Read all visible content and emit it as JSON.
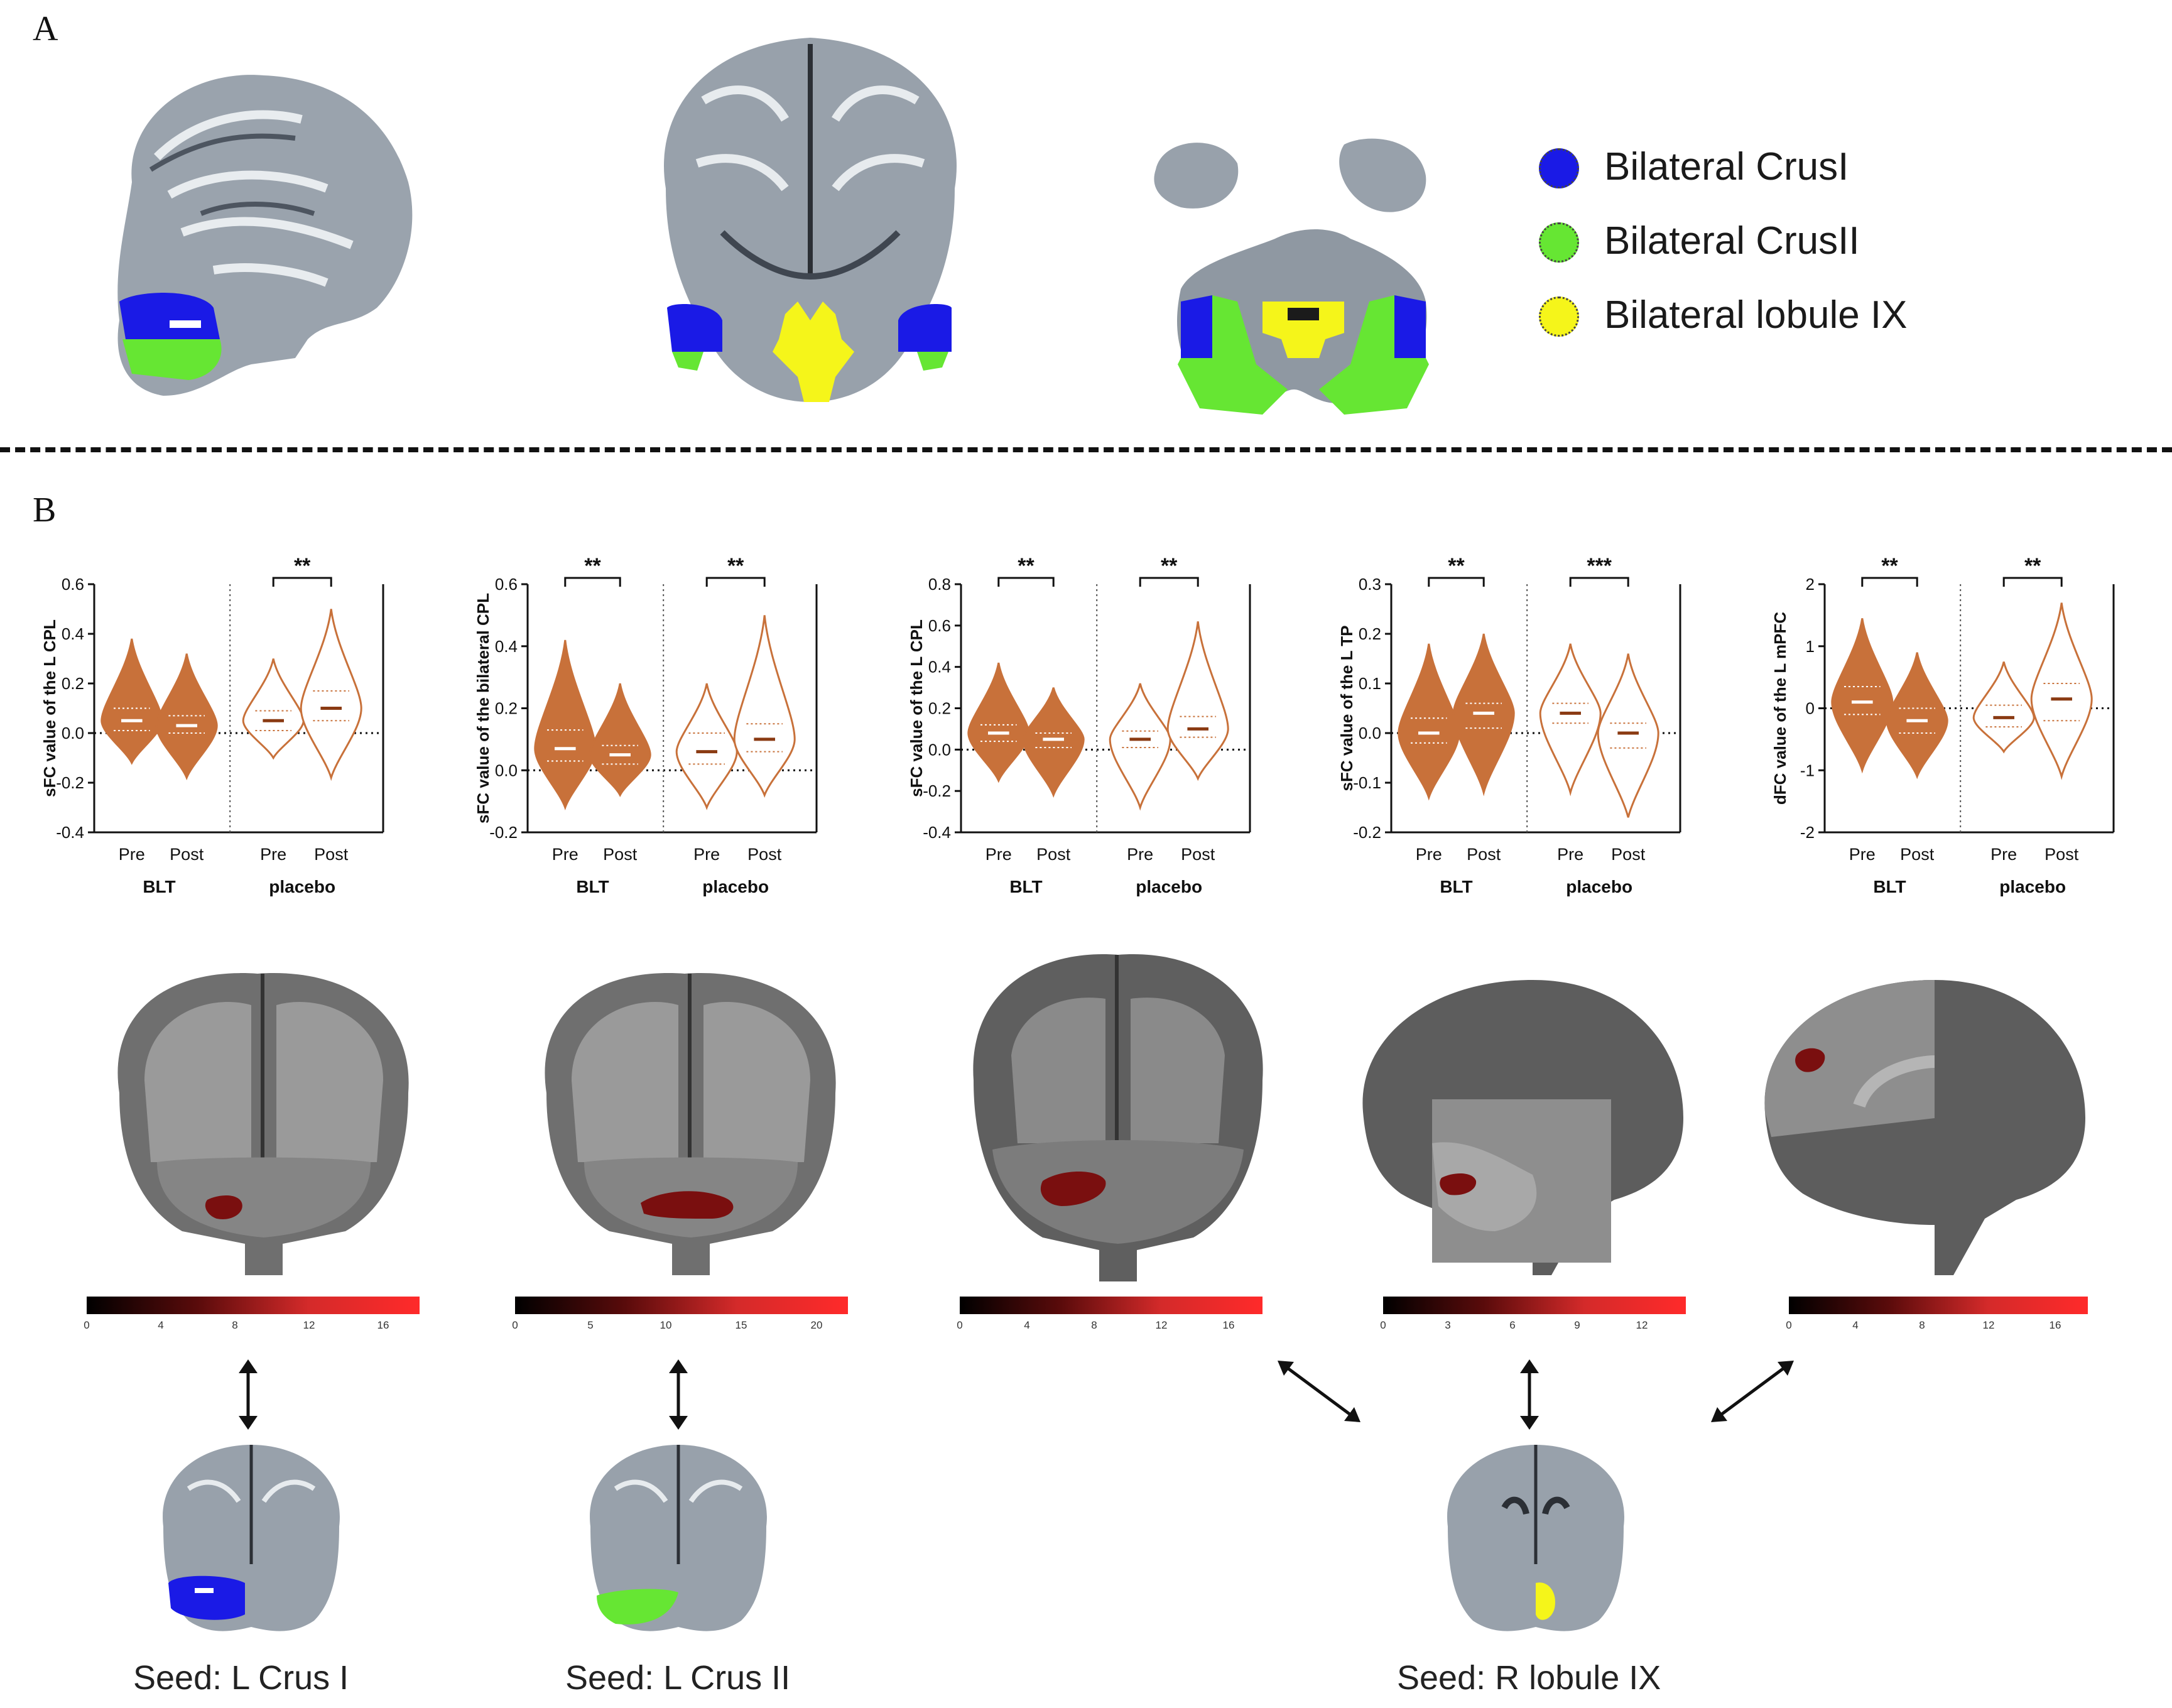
{
  "panel_a": {
    "letter": "A"
  },
  "panel_b": {
    "letter": "B"
  },
  "legend": [
    {
      "label": "Bilateral CrusI",
      "color": "#1a1ae6"
    },
    {
      "label": "Bilateral CrusII",
      "color": "#66e633"
    },
    {
      "label": "Bilateral lobule IX",
      "color": "#f5f51a"
    }
  ],
  "colors": {
    "violin_stroke": "#c8713a",
    "violin_fill": "#c8713a",
    "median": "#8a3a12",
    "cluster": "#7a0f0f"
  },
  "chart_data": [
    {
      "type": "violin",
      "ylabel": "sFC value of the L CPL",
      "ylim": [
        -0.4,
        0.6
      ],
      "yticks": [
        "-0.4",
        "-0.2",
        "0.0",
        "0.2",
        "0.4",
        "0.6"
      ],
      "groups": [
        "BLT",
        "placebo"
      ],
      "conditions": [
        "Pre",
        "Post",
        "Pre",
        "Post"
      ],
      "medians": [
        0.05,
        0.03,
        0.05,
        0.1
      ],
      "q1": [
        0.01,
        0.0,
        0.01,
        0.05
      ],
      "q3": [
        0.1,
        0.07,
        0.09,
        0.17
      ],
      "mins": [
        -0.12,
        -0.18,
        -0.1,
        -0.18
      ],
      "maxs": [
        0.38,
        0.32,
        0.3,
        0.5
      ],
      "sig": [
        "",
        "**"
      ]
    },
    {
      "type": "violin",
      "ylabel": "sFC value of the bilateral CPL",
      "ylim": [
        -0.2,
        0.6
      ],
      "yticks": [
        "-0.2",
        "0.0",
        "0.2",
        "0.4",
        "0.6"
      ],
      "groups": [
        "BLT",
        "placebo"
      ],
      "conditions": [
        "Pre",
        "Post",
        "Pre",
        "Post"
      ],
      "medians": [
        0.07,
        0.05,
        0.06,
        0.1
      ],
      "q1": [
        0.03,
        0.02,
        0.02,
        0.06
      ],
      "q3": [
        0.13,
        0.08,
        0.12,
        0.15
      ],
      "mins": [
        -0.12,
        -0.08,
        -0.12,
        -0.08
      ],
      "maxs": [
        0.42,
        0.28,
        0.28,
        0.5
      ],
      "sig": [
        "**",
        "**"
      ]
    },
    {
      "type": "violin",
      "ylabel": "sFC value of the L CPL",
      "ylim": [
        -0.4,
        0.8
      ],
      "yticks": [
        "-0.4",
        "-0.2",
        "0.0",
        "0.2",
        "0.4",
        "0.6",
        "0.8"
      ],
      "groups": [
        "BLT",
        "placebo"
      ],
      "conditions": [
        "Pre",
        "Post",
        "Pre",
        "Post"
      ],
      "medians": [
        0.08,
        0.05,
        0.05,
        0.1
      ],
      "q1": [
        0.04,
        0.01,
        0.01,
        0.06
      ],
      "q3": [
        0.12,
        0.08,
        0.09,
        0.16
      ],
      "mins": [
        -0.15,
        -0.22,
        -0.28,
        -0.14
      ],
      "maxs": [
        0.42,
        0.3,
        0.32,
        0.62
      ],
      "sig": [
        "**",
        "**"
      ]
    },
    {
      "type": "violin",
      "ylabel": "sFC value of the L TP",
      "ylim": [
        -0.2,
        0.3
      ],
      "yticks": [
        "-0.2",
        "-0.1",
        "0.0",
        "0.1",
        "0.2",
        "0.3"
      ],
      "groups": [
        "BLT",
        "placebo"
      ],
      "conditions": [
        "Pre",
        "Post",
        "Pre",
        "Post"
      ],
      "medians": [
        0.0,
        0.04,
        0.04,
        0.0
      ],
      "q1": [
        -0.02,
        0.01,
        0.02,
        -0.03
      ],
      "q3": [
        0.03,
        0.06,
        0.06,
        0.02
      ],
      "mins": [
        -0.13,
        -0.12,
        -0.12,
        -0.17
      ],
      "maxs": [
        0.18,
        0.2,
        0.18,
        0.16
      ],
      "sig": [
        "**",
        "***"
      ]
    },
    {
      "type": "violin",
      "ylabel": "dFC value of the L mPFC",
      "ylim": [
        -2,
        2
      ],
      "yticks": [
        "-2",
        "-1",
        "0",
        "1",
        "2"
      ],
      "groups": [
        "BLT",
        "placebo"
      ],
      "conditions": [
        "Pre",
        "Post",
        "Pre",
        "Post"
      ],
      "medians": [
        0.1,
        -0.2,
        -0.15,
        0.15
      ],
      "q1": [
        -0.1,
        -0.4,
        -0.3,
        -0.2
      ],
      "q3": [
        0.35,
        0.0,
        0.05,
        0.4
      ],
      "mins": [
        -1.0,
        -1.1,
        -0.7,
        -1.1
      ],
      "maxs": [
        1.45,
        0.9,
        0.75,
        1.7
      ],
      "sig": [
        "**",
        "**"
      ]
    }
  ],
  "colorbars": [
    {
      "ticks": [
        "0",
        "4",
        "8",
        "12",
        "16"
      ],
      "max": 18
    },
    {
      "ticks": [
        "0",
        "5",
        "10",
        "15",
        "20"
      ],
      "max": 22
    },
    {
      "ticks": [
        "0",
        "4",
        "8",
        "12",
        "16"
      ],
      "max": 18
    },
    {
      "ticks": [
        "0",
        "3",
        "6",
        "9",
        "12"
      ],
      "max": 14
    },
    {
      "ticks": [
        "0",
        "4",
        "8",
        "12",
        "16"
      ],
      "max": 18
    }
  ],
  "seeds": [
    "Seed: L Crus I",
    "Seed: L Crus II",
    "Seed: R lobule IX"
  ]
}
